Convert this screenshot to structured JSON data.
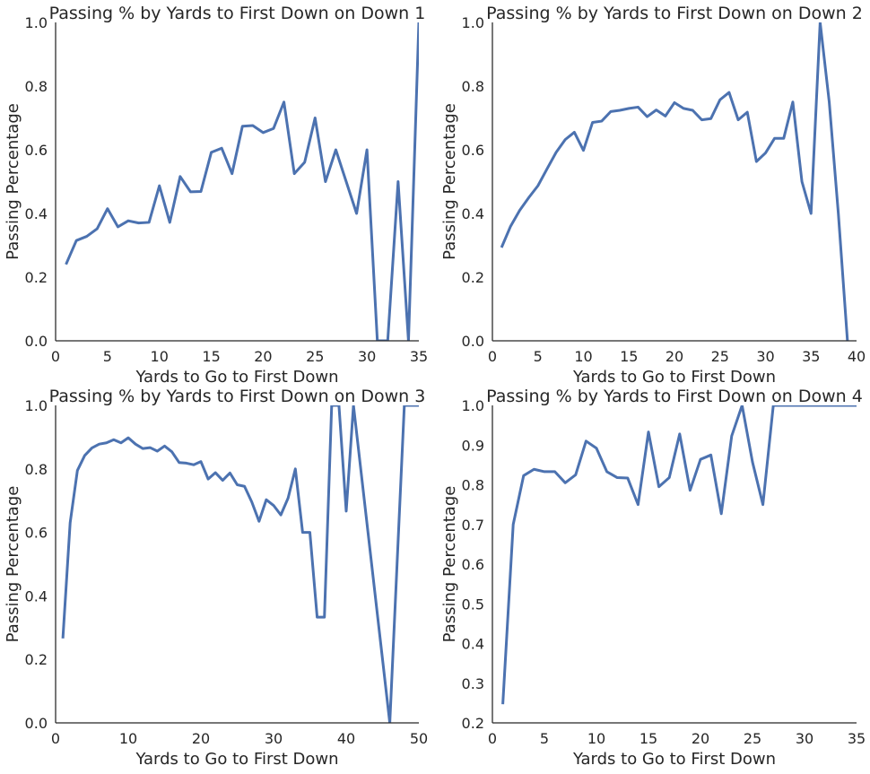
{
  "chart_data": [
    {
      "type": "line",
      "title": "Passing % by Yards to First Down on Down 1",
      "xlabel": "Yards to Go to First Down",
      "ylabel": "Passing Percentage",
      "xlim": [
        0,
        35
      ],
      "ylim": [
        0,
        1
      ],
      "xticks": [
        "0",
        "5",
        "10",
        "15",
        "20",
        "25",
        "30",
        "35"
      ],
      "yticks": [
        "0.0",
        "0.2",
        "0.4",
        "0.6",
        "0.8",
        "1.0"
      ],
      "color": "#4c72b0",
      "grid": false,
      "x": [
        1,
        2,
        3,
        4,
        5,
        6,
        7,
        8,
        9,
        10,
        11,
        12,
        13,
        14,
        15,
        16,
        17,
        18,
        19,
        20,
        21,
        22,
        23,
        24,
        25,
        26,
        27,
        28,
        29,
        30,
        31,
        32,
        33,
        34,
        35
      ],
      "y": [
        0.24,
        0.315,
        0.328,
        0.352,
        0.415,
        0.358,
        0.377,
        0.37,
        0.372,
        0.487,
        0.372,
        0.516,
        0.468,
        0.469,
        0.592,
        0.605,
        0.525,
        0.674,
        0.676,
        0.654,
        0.667,
        0.75,
        0.525,
        0.561,
        0.7,
        0.5,
        0.6,
        0.5,
        0.4,
        0.6,
        0.0,
        0.0,
        0.5,
        0.0,
        1.0
      ]
    },
    {
      "type": "line",
      "title": "Passing % by Yards to First Down on Down 2",
      "xlabel": "Yards to Go to First Down",
      "ylabel": "Passing Percentage",
      "xlim": [
        0,
        40
      ],
      "ylim": [
        0,
        1
      ],
      "xticks": [
        "0",
        "5",
        "10",
        "15",
        "20",
        "25",
        "30",
        "35",
        "40"
      ],
      "yticks": [
        "0.0",
        "0.2",
        "0.4",
        "0.6",
        "0.8",
        "1.0"
      ],
      "color": "#4c72b0",
      "grid": false,
      "x": [
        1,
        2,
        3,
        4,
        5,
        6,
        7,
        8,
        9,
        10,
        11,
        12,
        13,
        14,
        15,
        16,
        17,
        18,
        19,
        20,
        21,
        22,
        23,
        24,
        25,
        26,
        27,
        28,
        29,
        30,
        31,
        32,
        33,
        34,
        35,
        36,
        37,
        38,
        39
      ],
      "y": [
        0.293,
        0.36,
        0.41,
        0.45,
        0.487,
        0.54,
        0.592,
        0.632,
        0.655,
        0.598,
        0.686,
        0.69,
        0.72,
        0.724,
        0.73,
        0.734,
        0.704,
        0.725,
        0.706,
        0.748,
        0.73,
        0.724,
        0.694,
        0.698,
        0.757,
        0.78,
        0.694,
        0.718,
        0.563,
        0.59,
        0.636,
        0.636,
        0.75,
        0.5,
        0.4,
        1.0,
        0.75,
        0.4,
        0.0
      ]
    },
    {
      "type": "line",
      "title": "Passing % by Yards to First Down on Down 3",
      "xlabel": "Yards to Go to First Down",
      "ylabel": "Passing Percentage",
      "xlim": [
        0,
        50
      ],
      "ylim": [
        0,
        1
      ],
      "xticks": [
        "0",
        "10",
        "20",
        "30",
        "40",
        "50"
      ],
      "yticks": [
        "0.0",
        "0.2",
        "0.4",
        "0.6",
        "0.8",
        "1.0"
      ],
      "color": "#4c72b0",
      "grid": false,
      "x": [
        1,
        2,
        3,
        4,
        5,
        6,
        7,
        8,
        9,
        10,
        11,
        12,
        13,
        14,
        15,
        16,
        17,
        18,
        19,
        20,
        21,
        22,
        23,
        24,
        25,
        26,
        27,
        28,
        29,
        30,
        31,
        32,
        33,
        34,
        35,
        36,
        37,
        38,
        39,
        40,
        41,
        42,
        43,
        44,
        45,
        46,
        47,
        48,
        49,
        50
      ],
      "y": [
        0.266,
        0.63,
        0.795,
        0.842,
        0.866,
        0.878,
        0.882,
        0.892,
        0.882,
        0.898,
        0.878,
        0.864,
        0.867,
        0.856,
        0.872,
        0.854,
        0.82,
        0.818,
        0.813,
        0.823,
        0.768,
        0.788,
        0.764,
        0.787,
        0.75,
        0.745,
        0.696,
        0.635,
        0.703,
        0.685,
        0.655,
        0.708,
        0.8,
        0.6,
        0.6,
        0.333,
        0.333,
        1.0,
        1.0,
        0.667,
        1.0,
        0.8,
        0.6,
        0.4,
        0.2,
        0.0,
        0.5,
        1.0,
        1.0,
        1.0
      ]
    },
    {
      "type": "line",
      "title": "Passing % by Yards to First Down on Down 4",
      "xlabel": "Yards to Go to First Down",
      "ylabel": "Passing Percentage",
      "xlim": [
        0,
        35
      ],
      "ylim": [
        0.2,
        1
      ],
      "xticks": [
        "0",
        "5",
        "10",
        "15",
        "20",
        "25",
        "30",
        "35"
      ],
      "yticks": [
        "0.2",
        "0.3",
        "0.4",
        "0.5",
        "0.6",
        "0.7",
        "0.8",
        "0.9",
        "1.0"
      ],
      "color": "#4c72b0",
      "grid": false,
      "x": [
        1,
        2,
        3,
        4,
        5,
        6,
        7,
        8,
        9,
        10,
        11,
        12,
        13,
        14,
        15,
        16,
        17,
        18,
        19,
        20,
        21,
        22,
        23,
        24,
        25,
        26,
        27,
        28,
        29,
        30,
        31,
        32,
        33,
        34,
        35
      ],
      "y": [
        0.247,
        0.7,
        0.823,
        0.839,
        0.833,
        0.833,
        0.805,
        0.825,
        0.91,
        0.892,
        0.833,
        0.818,
        0.817,
        0.75,
        0.933,
        0.795,
        0.818,
        0.928,
        0.786,
        0.864,
        0.875,
        0.727,
        0.923,
        1.0,
        0.857,
        0.75,
        1.0,
        1.0,
        1.0,
        1.0,
        1.0,
        1.0,
        1.0,
        1.0,
        1.0
      ]
    }
  ]
}
